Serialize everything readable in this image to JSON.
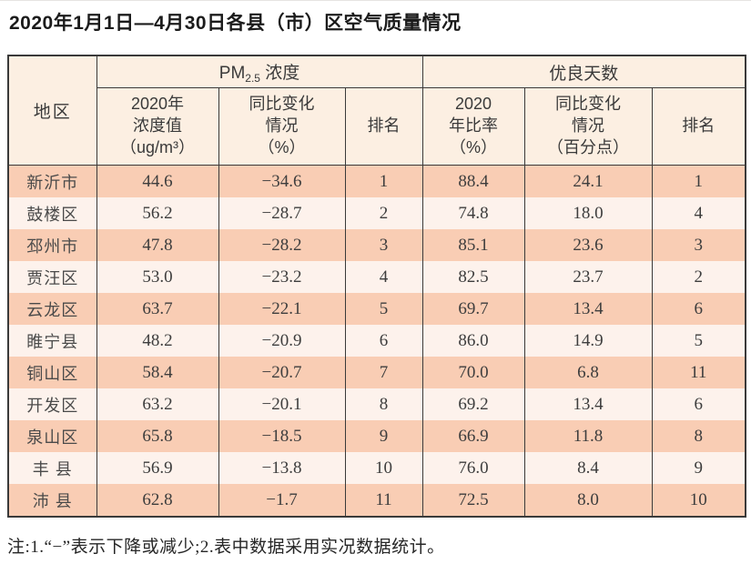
{
  "page": {
    "title": "2020年1月1日—4月30日各县（市）区空气质量情况",
    "note": "注:1.“−”表示下降或减少;2.表中数据采用实况数据统计。"
  },
  "table": {
    "region_header": "地区",
    "group_pm": {
      "prefix": "PM",
      "sub": "2.5",
      "suffix": " 浓度"
    },
    "group_good_days": "优良天数",
    "subheaders": [
      "2020年\n浓度值\n（ug/m³）",
      "同比变化\n情况\n（%）",
      "排名",
      "2020\n年比率\n（%）",
      "同比变化\n情况\n（百分点）",
      "排名"
    ],
    "rows": [
      [
        "新沂市",
        "44.6",
        "−34.6",
        "1",
        "88.4",
        "24.1",
        "1"
      ],
      [
        "鼓楼区",
        "56.2",
        "−28.7",
        "2",
        "74.8",
        "18.0",
        "4"
      ],
      [
        "邳州市",
        "47.8",
        "−28.2",
        "3",
        "85.1",
        "23.6",
        "3"
      ],
      [
        "贾汪区",
        "53.0",
        "−23.2",
        "4",
        "82.5",
        "23.7",
        "2"
      ],
      [
        "云龙区",
        "63.7",
        "−22.1",
        "5",
        "69.7",
        "13.4",
        "6"
      ],
      [
        "睢宁县",
        "48.2",
        "−20.9",
        "6",
        "86.0",
        "14.9",
        "5"
      ],
      [
        "铜山区",
        "58.4",
        "−20.7",
        "7",
        "70.0",
        "6.8",
        "11"
      ],
      [
        "开发区",
        "63.2",
        "−20.1",
        "8",
        "69.2",
        "13.4",
        "6"
      ],
      [
        "泉山区",
        "65.8",
        "−18.5",
        "9",
        "66.9",
        "11.8",
        "8"
      ],
      [
        "丰 县",
        "56.9",
        "−13.8",
        "10",
        "76.0",
        "8.4",
        "9"
      ],
      [
        "沛 县",
        "62.8",
        "−1.7",
        "11",
        "72.5",
        "8.0",
        "10"
      ]
    ]
  },
  "colors": {
    "border": "#3a3a3a",
    "header-bg": "#fcefe2",
    "row-odd": "#f9cdb4",
    "row-even": "#fdf2ec"
  }
}
